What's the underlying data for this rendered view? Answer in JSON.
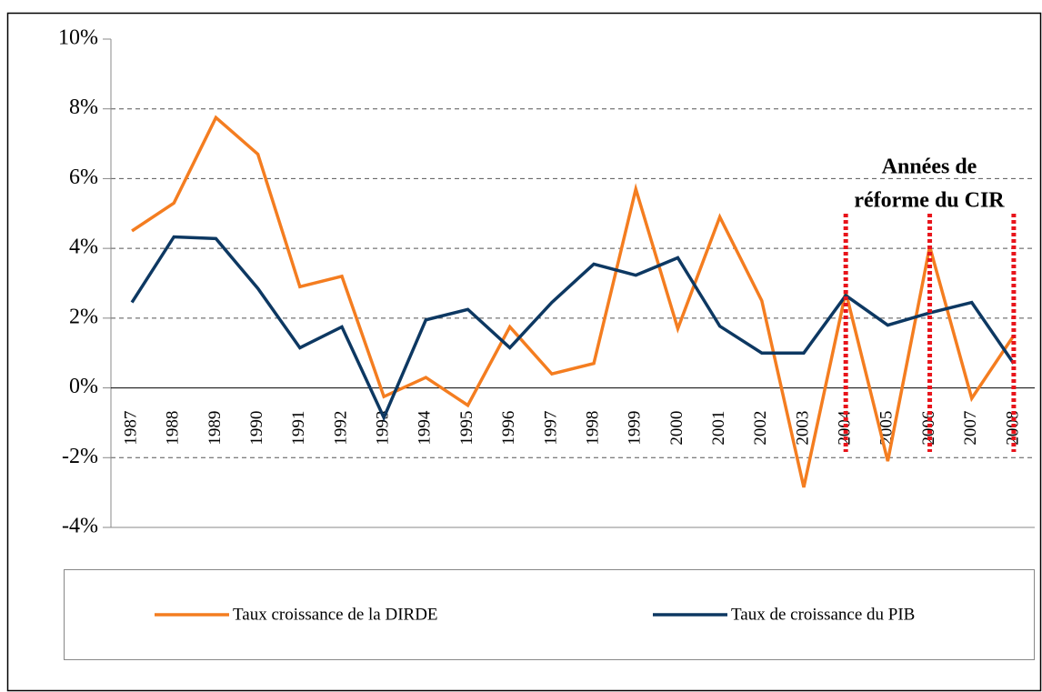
{
  "chart_data": {
    "type": "line",
    "categories": [
      "1987",
      "1988",
      "1989",
      "1990",
      "1991",
      "1992",
      "1993",
      "1994",
      "1995",
      "1996",
      "1997",
      "1998",
      "1999",
      "2000",
      "2001",
      "2002",
      "2003",
      "2004",
      "2005",
      "2006",
      "2007",
      "2008"
    ],
    "series": [
      {
        "name": "Taux croissance de la DIRDE",
        "color": "#f47d20",
        "values": [
          4.5,
          5.3,
          7.75,
          6.7,
          2.9,
          3.2,
          -0.25,
          0.3,
          -0.5,
          1.75,
          0.4,
          0.7,
          5.7,
          1.7,
          4.9,
          2.5,
          -2.85,
          2.75,
          -2.1,
          4.05,
          -0.3,
          1.5
        ]
      },
      {
        "name": "Taux de croissance du PIB",
        "color": "#0d3862",
        "values": [
          2.45,
          4.33,
          4.28,
          2.85,
          1.15,
          1.75,
          -0.85,
          1.95,
          2.25,
          1.15,
          2.45,
          3.55,
          3.23,
          3.73,
          1.77,
          1.0,
          1.0,
          2.65,
          1.8,
          2.15,
          2.45,
          0.7
        ]
      }
    ],
    "ylim": [
      -4,
      10
    ],
    "yticks": [
      {
        "value": -4,
        "label": "-4%"
      },
      {
        "value": -2,
        "label": "-2%"
      },
      {
        "value": 0,
        "label": "0%"
      },
      {
        "value": 2,
        "label": "2%"
      },
      {
        "value": 4,
        "label": "4%"
      },
      {
        "value": 6,
        "label": "6%"
      },
      {
        "value": 8,
        "label": "8%"
      },
      {
        "value": 10,
        "label": "10%"
      }
    ],
    "grid": true,
    "annotation": [
      "Années de",
      "réforme du CIR"
    ],
    "annotation_color": "#e8141b",
    "highlight_categories": [
      "2004",
      "2006",
      "2008"
    ],
    "legend": "bottom"
  }
}
